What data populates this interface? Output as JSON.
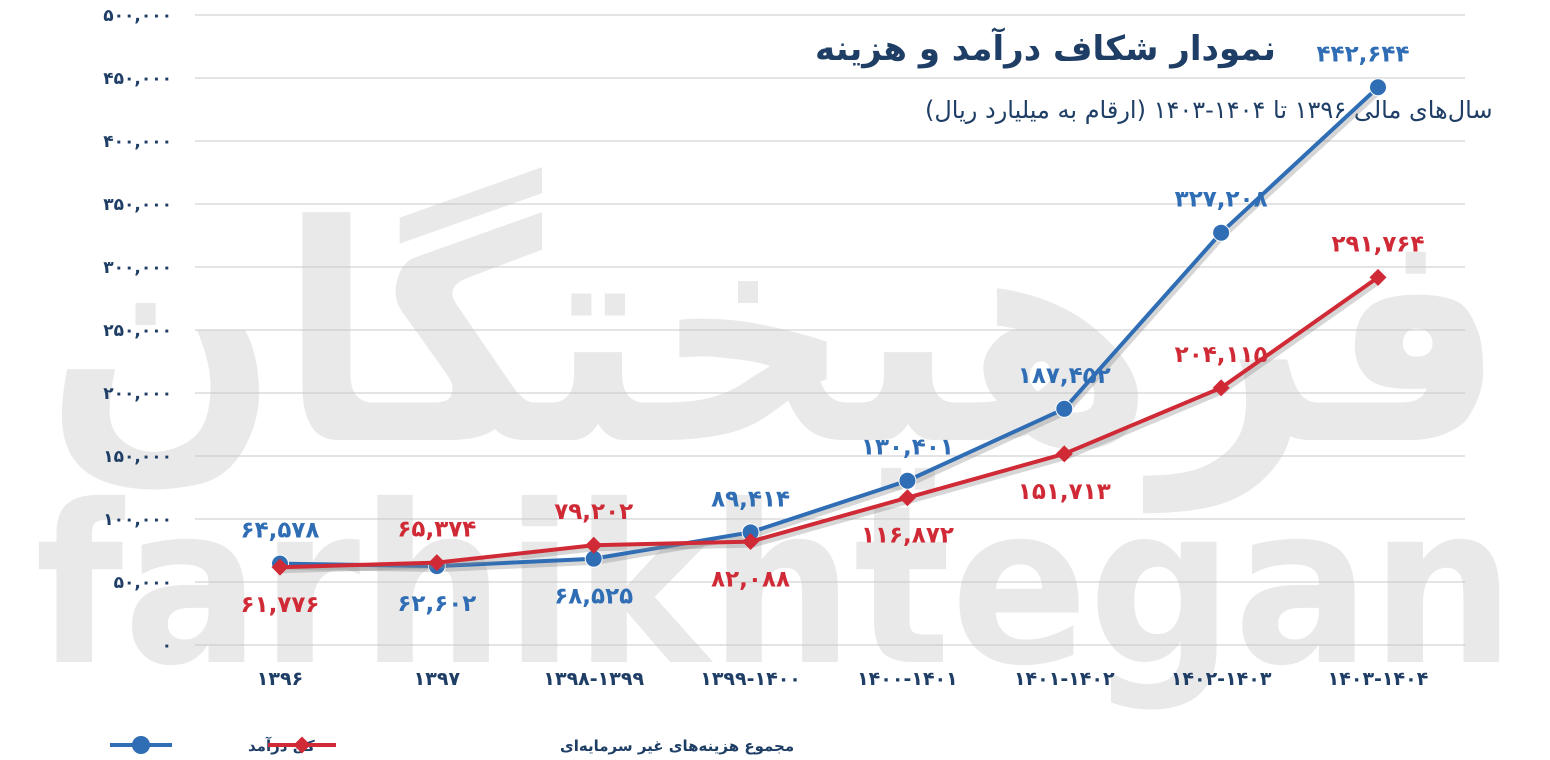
{
  "chart_data": {
    "type": "line",
    "title": "نمودار شکاف درآمد و هزینه",
    "subtitle": "سال‌های مالی ۱۳۹۶ تا ۱۴۰۴-۱۴۰۳ (ارقام به میلیارد ریال)",
    "categories": [
      "۱۳۹۶",
      "۱۳۹۷",
      "۱۳۹۸-۱۳۹۹",
      "۱۳۹۹-۱۴۰۰",
      "۱۴۰۰-۱۴۰۱",
      "۱۴۰۱-۱۴۰۲",
      "۱۴۰۲-۱۴۰۳",
      "۱۴۰۳-۱۴۰۴"
    ],
    "ylim": [
      0,
      500000
    ],
    "yticks": [
      0,
      50000,
      100000,
      150000,
      200000,
      250000,
      300000,
      350000,
      400000,
      450000,
      500000
    ],
    "ytick_labels": [
      "۰",
      "۵۰,۰۰۰",
      "۱۰۰,۰۰۰",
      "۱۵۰,۰۰۰",
      "۲۰۰,۰۰۰",
      "۲۵۰,۰۰۰",
      "۳۰۰,۰۰۰",
      "۳۵۰,۰۰۰",
      "۴۰۰,۰۰۰",
      "۴۵۰,۰۰۰",
      "۵۰۰,۰۰۰"
    ],
    "grid": true,
    "legend_position": "bottom-left",
    "series": [
      {
        "name": "کل درآمد",
        "color": "#2f6db5",
        "marker": "circle",
        "values": [
          64578,
          62602,
          68525,
          89414,
          130401,
          187452,
          327208,
          442644
        ],
        "labels": [
          "۶۴,۵۷۸",
          "۶۲,۶۰۲",
          "۶۸,۵۲۵",
          "۸۹,۴۱۴",
          "۱۳۰,۴۰۱",
          "۱۸۷,۴۵۲",
          "۳۲۷,۲۰۸",
          "۴۴۲,۶۴۴"
        ],
        "label_side": [
          "above",
          "below",
          "below",
          "above",
          "above",
          "above",
          "above",
          "above"
        ]
      },
      {
        "name": "مجموع هزینه‌های غیر سرمایه‌ای",
        "color": "#cf2a36",
        "marker": "diamond",
        "values": [
          61776,
          65374,
          79202,
          82088,
          116872,
          151713,
          204115,
          291764
        ],
        "labels": [
          "۶۱,۷۷۶",
          "۶۵,۳۷۴",
          "۷۹,۲۰۲",
          "۸۲,۰۸۸",
          "۱۱۶,۸۷۲",
          "۱۵۱,۷۱۳",
          "۲۰۴,۱۱۵",
          "۲۹۱,۷۶۴"
        ],
        "label_side": [
          "below",
          "above",
          "above",
          "below",
          "below",
          "below",
          "above",
          "above"
        ]
      }
    ],
    "watermark": {
      "fa": "فرهیختگان",
      "en": "farhikhtegan"
    },
    "colors": {
      "axis_text": "#1f3e66",
      "grid": "#c8c8c8",
      "watermark": "#e9e9e9"
    }
  }
}
